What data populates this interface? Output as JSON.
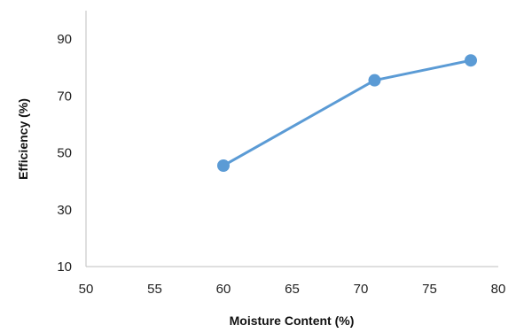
{
  "chart_data": {
    "type": "line",
    "title": "",
    "xlabel": "Moisture Content (%)",
    "ylabel": "Efficiency (%)",
    "xlim": [
      50,
      80
    ],
    "ylim": [
      10,
      100
    ],
    "x_ticks": [
      "50",
      "55",
      "60",
      "65",
      "70",
      "75",
      "80"
    ],
    "y_ticks": [
      "10",
      "30",
      "50",
      "70",
      "90"
    ],
    "grid": false,
    "legend": "none",
    "series": [
      {
        "color": "#5b9bd5",
        "points": [
          {
            "x": 60,
            "y": 45.5
          },
          {
            "x": 71,
            "y": 75.5
          },
          {
            "x": 78,
            "y": 82.5
          }
        ]
      }
    ]
  }
}
